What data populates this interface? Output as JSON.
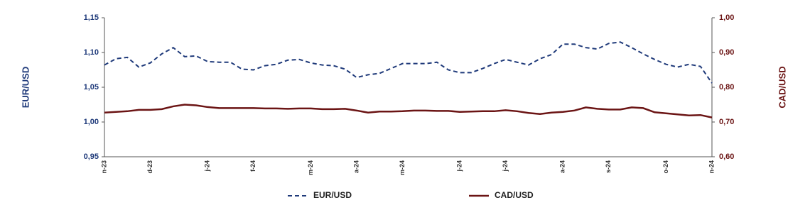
{
  "chart_data": {
    "type": "line",
    "ylabel": "EUR/USD",
    "y2label": "CAD/USD",
    "categories": [
      "n-23",
      null,
      null,
      null,
      "d-23",
      null,
      null,
      null,
      null,
      "j-24",
      null,
      null,
      null,
      "f-24",
      null,
      null,
      null,
      null,
      "m-24",
      null,
      null,
      null,
      "a-24",
      null,
      null,
      null,
      "m-24",
      null,
      null,
      null,
      null,
      "j-24",
      null,
      null,
      null,
      "j-24",
      null,
      null,
      null,
      null,
      "a-24",
      null,
      null,
      null,
      "s-24",
      null,
      null,
      null,
      null,
      "o-24",
      null,
      null,
      null,
      "n-24"
    ],
    "series": [
      {
        "name": "EUR/USD",
        "color": "#1f3a7a",
        "dash": true,
        "values": [
          1.082,
          1.091,
          1.093,
          1.079,
          1.085,
          1.098,
          1.107,
          1.094,
          1.095,
          1.087,
          1.086,
          1.086,
          1.076,
          1.075,
          1.081,
          1.083,
          1.089,
          1.09,
          1.085,
          1.082,
          1.081,
          1.076,
          1.064,
          1.068,
          1.07,
          1.077,
          1.084,
          1.084,
          1.084,
          1.086,
          1.075,
          1.071,
          1.071,
          1.077,
          1.084,
          1.09,
          1.086,
          1.082,
          1.091,
          1.097,
          1.112,
          1.112,
          1.107,
          1.105,
          1.113,
          1.115,
          1.107,
          1.098,
          1.09,
          1.083,
          1.079,
          1.083,
          1.08,
          1.056
        ]
      },
      {
        "name": "CAD/USD",
        "color": "#6b1414",
        "axis": "y2",
        "values": [
          0.727,
          0.729,
          0.731,
          0.735,
          0.735,
          0.737,
          0.745,
          0.75,
          0.748,
          0.743,
          0.74,
          0.74,
          0.74,
          0.74,
          0.739,
          0.739,
          0.738,
          0.739,
          0.739,
          0.737,
          0.737,
          0.738,
          0.733,
          0.727,
          0.73,
          0.73,
          0.731,
          0.733,
          0.733,
          0.732,
          0.732,
          0.729,
          0.73,
          0.731,
          0.731,
          0.734,
          0.731,
          0.726,
          0.723,
          0.727,
          0.729,
          0.733,
          0.742,
          0.738,
          0.736,
          0.736,
          0.742,
          0.74,
          0.728,
          0.725,
          0.722,
          0.719,
          0.72,
          0.713
        ]
      }
    ],
    "ylim": [
      0.95,
      1.15
    ],
    "yticks": [
      {
        "value": 0.95,
        "label": "0,95"
      },
      {
        "value": 1.0,
        "label": "1,00"
      },
      {
        "value": 1.05,
        "label": "1,05"
      },
      {
        "value": 1.1,
        "label": "1,10"
      },
      {
        "value": 1.15,
        "label": "1,15"
      }
    ],
    "y2lim": [
      0.6,
      1.0
    ],
    "y2ticks": [
      {
        "value": 0.6,
        "label": "0,60"
      },
      {
        "value": 0.7,
        "label": "0,70"
      },
      {
        "value": 0.8,
        "label": "0,80"
      },
      {
        "value": 0.9,
        "label": "0,90"
      },
      {
        "value": 1.0,
        "label": "1,00"
      }
    ],
    "grid": false,
    "legend": "bottom"
  }
}
